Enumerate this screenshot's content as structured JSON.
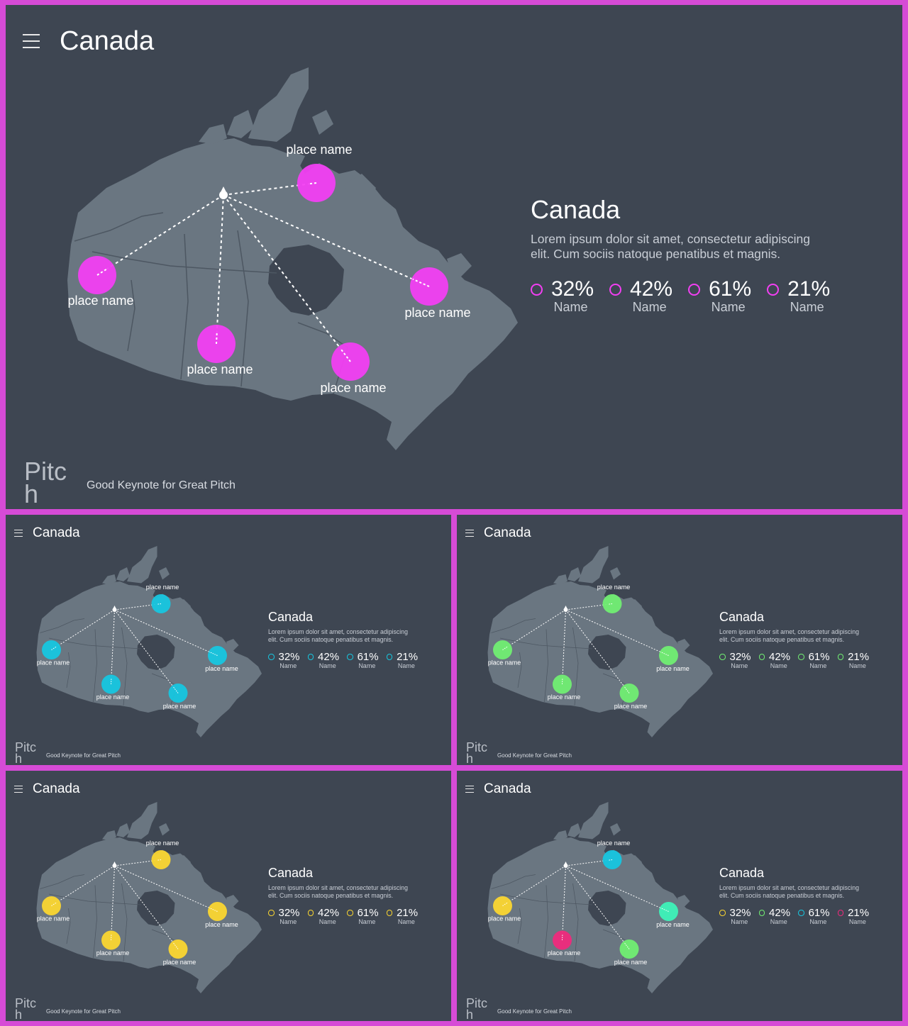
{
  "slides": [
    {
      "title": "Canada",
      "info_title": "Canada",
      "desc_1": "Lorem ipsum dolor sit amet, consectetur adipiscing",
      "desc_2": "elit. Cum sociis natoque penatibus et magnis.",
      "marker_colors": [
        "#f23ff2",
        "#f23ff2",
        "#f23ff2",
        "#f23ff2",
        "#f23ff2"
      ],
      "stat_colors": [
        "#f23ff2",
        "#f23ff2",
        "#f23ff2",
        "#f23ff2"
      ],
      "stats": [
        {
          "value": "32%",
          "name": "Name"
        },
        {
          "value": "42%",
          "name": "Name"
        },
        {
          "value": "61%",
          "name": "Name"
        },
        {
          "value": "21%",
          "name": "Name"
        }
      ],
      "place_label": "place name",
      "brand_1": "Pitc",
      "brand_2": "h",
      "tagline": "Good Keynote for Great Pitch"
    },
    {
      "title": "Canada",
      "info_title": "Canada",
      "desc_1": "Lorem ipsum dolor sit amet, consectetur adipiscing",
      "desc_2": "elit. Cum sociis natoque penatibus et magnis.",
      "marker_colors": [
        "#17c6df",
        "#17c6df",
        "#17c6df",
        "#17c6df",
        "#17c6df"
      ],
      "stat_colors": [
        "#17c6df",
        "#17c6df",
        "#17c6df",
        "#17c6df"
      ],
      "stats": [
        {
          "value": "32%",
          "name": "Name"
        },
        {
          "value": "42%",
          "name": "Name"
        },
        {
          "value": "61%",
          "name": "Name"
        },
        {
          "value": "21%",
          "name": "Name"
        }
      ],
      "place_label": "place name",
      "brand_1": "Pitc",
      "brand_2": "h",
      "tagline": "Good Keynote for Great Pitch"
    },
    {
      "title": "Canada",
      "info_title": "Canada",
      "desc_1": "Lorem ipsum dolor sit amet, consectetur adipiscing",
      "desc_2": "elit. Cum sociis natoque penatibus et magnis.",
      "marker_colors": [
        "#71ee72",
        "#71ee72",
        "#71ee72",
        "#71ee72",
        "#71ee72"
      ],
      "stat_colors": [
        "#71ee72",
        "#71ee72",
        "#71ee72",
        "#71ee72"
      ],
      "stats": [
        {
          "value": "32%",
          "name": "Name"
        },
        {
          "value": "42%",
          "name": "Name"
        },
        {
          "value": "61%",
          "name": "Name"
        },
        {
          "value": "21%",
          "name": "Name"
        }
      ],
      "place_label": "place name",
      "brand_1": "Pitc",
      "brand_2": "h",
      "tagline": "Good Keynote for Great Pitch"
    },
    {
      "title": "Canada",
      "info_title": "Canada",
      "desc_1": "Lorem ipsum dolor sit amet, consectetur adipiscing",
      "desc_2": "elit. Cum sociis natoque penatibus et magnis.",
      "marker_colors": [
        "#fbd630",
        "#fbd630",
        "#fbd630",
        "#fbd630",
        "#fbd630"
      ],
      "stat_colors": [
        "#fbd630",
        "#fbd630",
        "#fbd630",
        "#fbd630"
      ],
      "stats": [
        {
          "value": "32%",
          "name": "Name"
        },
        {
          "value": "42%",
          "name": "Name"
        },
        {
          "value": "61%",
          "name": "Name"
        },
        {
          "value": "21%",
          "name": "Name"
        }
      ],
      "place_label": "place name",
      "brand_1": "Pitc",
      "brand_2": "h",
      "tagline": "Good Keynote for Great Pitch"
    },
    {
      "title": "Canada",
      "info_title": "Canada",
      "desc_1": "Lorem ipsum dolor sit amet, consectetur adipiscing",
      "desc_2": "elit. Cum sociis natoque penatibus et magnis.",
      "marker_colors": [
        "#fbd630",
        "#ef2a7c",
        "#71ee72",
        "#3ef2b8",
        "#17c6df"
      ],
      "stat_colors": [
        "#fbd630",
        "#71ee72",
        "#17c6df",
        "#ef2a7c"
      ],
      "stats": [
        {
          "value": "32%",
          "name": "Name"
        },
        {
          "value": "42%",
          "name": "Name"
        },
        {
          "value": "61%",
          "name": "Name"
        },
        {
          "value": "21%",
          "name": "Name"
        }
      ],
      "place_label": "place name",
      "brand_1": "Pitc",
      "brand_2": "h",
      "tagline": "Good Keynote for Great Pitch"
    }
  ]
}
